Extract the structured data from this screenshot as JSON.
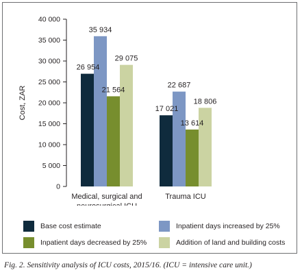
{
  "chart_data": {
    "type": "bar",
    "ylabel": "Cost, ZAR",
    "xlabel": "",
    "ylim": [
      0,
      40000
    ],
    "yticks": [
      0,
      5000,
      10000,
      15000,
      20000,
      25000,
      30000,
      35000,
      40000
    ],
    "ytick_labels": [
      "0",
      "5 000",
      "10 000",
      "15 000",
      "20 000",
      "25 000",
      "30 000",
      "35 000",
      "40 000"
    ],
    "grid": false,
    "legend_position": "bottom",
    "categories": [
      [
        "Medical, surgical and",
        "neurosurgical ICU"
      ],
      [
        "Trauma ICU"
      ]
    ],
    "series": [
      {
        "name": "Base cost estimate",
        "color": "#0f2b3d",
        "values": [
          26954,
          17021
        ],
        "labels": [
          "26 954",
          "17 021"
        ]
      },
      {
        "name": "Inpatient days increased by 25%",
        "color": "#7d97c4",
        "values": [
          35934,
          22687
        ],
        "labels": [
          "35 934",
          "22 687"
        ]
      },
      {
        "name": "Inpatient days decreased by 25%",
        "color": "#778e2e",
        "values": [
          21564,
          13614
        ],
        "labels": [
          "21 564",
          "13 614"
        ]
      },
      {
        "name": "Addition of land and building costs",
        "color": "#cbd3a2",
        "values": [
          29075,
          18806
        ],
        "labels": [
          "29 075",
          "18 806"
        ]
      }
    ]
  },
  "caption": "Fig. 2. Sensitivity analysis of ICU costs, 2015/16. (ICU = intensive care unit.)"
}
